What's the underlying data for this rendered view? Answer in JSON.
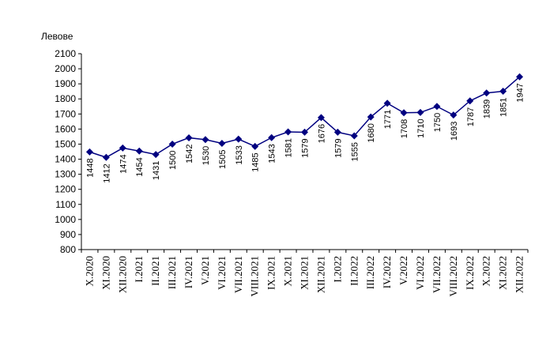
{
  "chart_data": {
    "type": "line",
    "y_label": "Левове",
    "categories": [
      "X.2020",
      "XI.2020",
      "XII.2020",
      "I.2021",
      "II.2021",
      "III.2021",
      "IV.2021",
      "V.2021",
      "VI.2021",
      "VII.2021",
      "VIII.2021",
      "IX.2021",
      "X.2021",
      "XI.2021",
      "XII.2021",
      "I.2022",
      "II.2022",
      "III.2022",
      "IV.2022",
      "V.2022",
      "VI.2022",
      "VII.2022",
      "VIII.2022",
      "IX.2022",
      "X.2022",
      "XI.2022",
      "XII.2022"
    ],
    "values": [
      1448,
      1412,
      1474,
      1454,
      1431,
      1500,
      1542,
      1530,
      1505,
      1533,
      1485,
      1543,
      1581,
      1579,
      1676,
      1579,
      1555,
      1680,
      1771,
      1708,
      1710,
      1750,
      1693,
      1787,
      1839,
      1851,
      1947
    ],
    "color": "#000080",
    "ylim": [
      800,
      2100
    ],
    "yticks": [
      800,
      900,
      1000,
      1100,
      1200,
      1300,
      1400,
      1500,
      1600,
      1700,
      1800,
      1900,
      2000,
      2100
    ],
    "grid": false
  }
}
